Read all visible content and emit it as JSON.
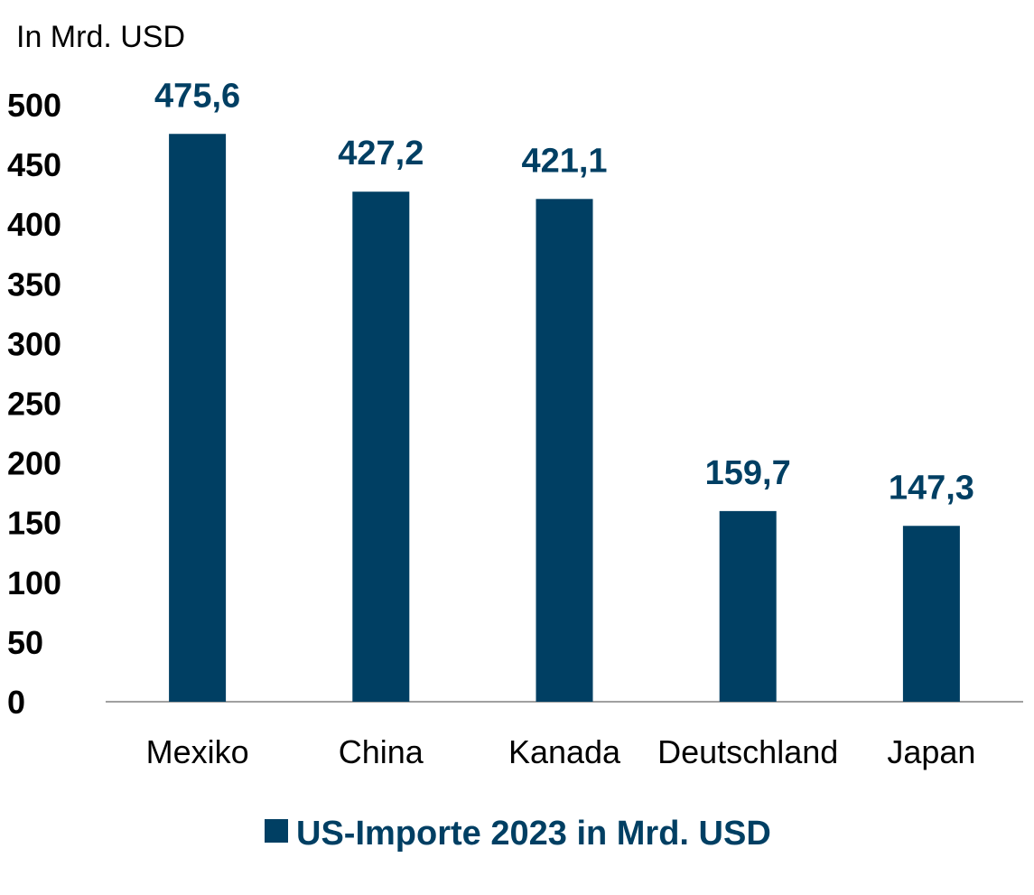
{
  "chart_data": {
    "type": "bar",
    "unit_label": "In Mrd. USD",
    "categories": [
      "Mexiko",
      "China",
      "Kanada",
      "Deutschland",
      "Japan"
    ],
    "series": [
      {
        "name": "US-Importe 2023 in Mrd. USD",
        "values": [
          475.6,
          427.2,
          421.1,
          159.7,
          147.3
        ],
        "value_labels": [
          "475,6",
          "427,2",
          "421,1",
          "159,7",
          "147,3"
        ]
      }
    ],
    "ylim": [
      0,
      500
    ],
    "yticks": [
      "0",
      "50",
      "100",
      "150",
      "200",
      "250",
      "300",
      "350",
      "400",
      "450",
      "500"
    ],
    "grid": false,
    "legend_position": "bottom",
    "colors": {
      "bar": "#003f63",
      "axis": "#808080",
      "text": "#000000"
    }
  }
}
